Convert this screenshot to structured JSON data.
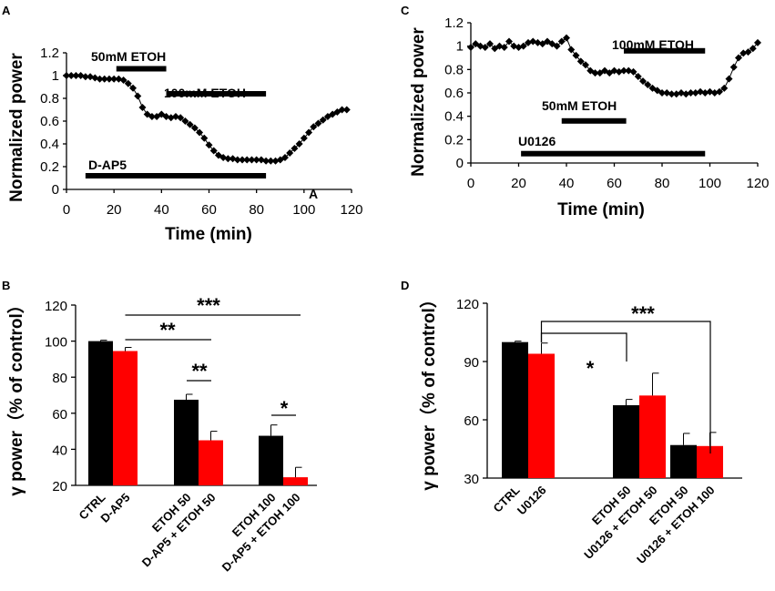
{
  "chart_data": [
    {
      "panel": "A",
      "type": "line",
      "xlabel": "Time (min)",
      "ylabel": "Normalized power",
      "xlim": [
        0,
        120
      ],
      "ylim": [
        0,
        1.2
      ],
      "xticks": [
        0,
        20,
        40,
        60,
        80,
        100,
        120
      ],
      "yticks": [
        0,
        0.2,
        0.4,
        0.6,
        0.8,
        1,
        1.2
      ],
      "stray_mark": "A",
      "x": [
        0,
        2,
        4,
        6,
        8,
        10,
        12,
        14,
        16,
        18,
        20,
        22,
        24,
        26,
        28,
        30,
        32,
        34,
        36,
        38,
        40,
        42,
        44,
        46,
        48,
        50,
        52,
        54,
        56,
        58,
        60,
        62,
        64,
        66,
        68,
        70,
        72,
        74,
        76,
        78,
        80,
        82,
        84,
        86,
        88,
        90,
        92,
        94,
        96,
        98,
        100,
        102,
        104,
        106,
        108,
        110,
        112,
        114,
        116,
        118
      ],
      "y": [
        1.0,
        1.0,
        1.0,
        1.0,
        0.99,
        0.99,
        0.98,
        0.97,
        0.97,
        0.97,
        0.97,
        0.97,
        0.96,
        0.93,
        0.89,
        0.82,
        0.72,
        0.66,
        0.64,
        0.64,
        0.66,
        0.64,
        0.63,
        0.64,
        0.63,
        0.6,
        0.57,
        0.54,
        0.5,
        0.45,
        0.39,
        0.34,
        0.3,
        0.28,
        0.27,
        0.27,
        0.26,
        0.26,
        0.26,
        0.26,
        0.26,
        0.26,
        0.25,
        0.25,
        0.25,
        0.26,
        0.28,
        0.32,
        0.36,
        0.4,
        0.45,
        0.5,
        0.55,
        0.58,
        0.61,
        0.64,
        0.66,
        0.68,
        0.7,
        0.7
      ],
      "bars": [
        {
          "label": "50mM ETOH",
          "start": 21,
          "end": 42,
          "level": 1.06
        },
        {
          "label": "100mM ETOH",
          "start": 42,
          "end": 84,
          "level": 0.84
        },
        {
          "label": "D-AP5",
          "start": 8,
          "end": 84,
          "level": 0.12
        }
      ]
    },
    {
      "panel": "C",
      "type": "line",
      "xlabel": "Time (min)",
      "ylabel": "Normalized power",
      "xlim": [
        0,
        120
      ],
      "ylim": [
        0,
        1.2
      ],
      "xticks": [
        0,
        20,
        40,
        60,
        80,
        100,
        120
      ],
      "yticks": [
        0,
        0.2,
        0.4,
        0.6,
        0.8,
        1,
        1.2
      ],
      "x": [
        0,
        2,
        4,
        6,
        8,
        10,
        12,
        14,
        16,
        18,
        20,
        22,
        24,
        26,
        28,
        30,
        32,
        34,
        36,
        38,
        40,
        42,
        44,
        46,
        48,
        50,
        52,
        54,
        56,
        58,
        60,
        62,
        64,
        66,
        68,
        70,
        72,
        74,
        76,
        78,
        80,
        82,
        84,
        86,
        88,
        90,
        92,
        94,
        96,
        98,
        100,
        102,
        104,
        106,
        108,
        110,
        112,
        114,
        116,
        118,
        120
      ],
      "y": [
        0.99,
        1.02,
        1.0,
        0.99,
        1.02,
        0.98,
        1.0,
        0.99,
        1.04,
        1.0,
        0.99,
        1.0,
        1.03,
        1.04,
        1.03,
        1.02,
        1.04,
        1.02,
        1.0,
        1.04,
        1.07,
        0.97,
        0.92,
        0.87,
        0.84,
        0.79,
        0.77,
        0.77,
        0.79,
        0.77,
        0.79,
        0.78,
        0.79,
        0.79,
        0.78,
        0.74,
        0.7,
        0.67,
        0.64,
        0.62,
        0.6,
        0.6,
        0.59,
        0.59,
        0.6,
        0.59,
        0.6,
        0.6,
        0.61,
        0.6,
        0.61,
        0.6,
        0.61,
        0.64,
        0.72,
        0.82,
        0.9,
        0.94,
        0.95,
        0.98,
        1.03
      ],
      "bars": [
        {
          "label": "100mM ETOH",
          "start": 64,
          "end": 98,
          "level": 0.96
        },
        {
          "label": "50mM ETOH",
          "start": 38,
          "end": 65,
          "level": 0.36
        },
        {
          "label": "U0126",
          "start": 21,
          "end": 98,
          "level": 0.08
        }
      ]
    },
    {
      "panel": "B",
      "type": "bar",
      "ylabel": "γ power（% of control）",
      "ylim": [
        20,
        120
      ],
      "yticks": [
        20,
        40,
        60,
        80,
        100,
        120
      ],
      "groups": [
        "CTRL",
        "D-AP5",
        "ETOH 50",
        "D-AP5 + ETOH 50",
        "ETOH 100",
        "D-AP5 + ETOH 100"
      ],
      "series": [
        {
          "name": "black",
          "color": "#000000",
          "values": [
            100,
            67.5,
            47.5
          ],
          "errors": [
            0.5,
            3,
            6
          ]
        },
        {
          "name": "red",
          "color": "#ff0000",
          "values": [
            94.5,
            45,
            24.5
          ],
          "errors": [
            2,
            5,
            5.5
          ]
        }
      ],
      "significance": [
        {
          "label": "***",
          "from": "D-AP5",
          "to": "D-AP5 + ETOH 100"
        },
        {
          "label": "**",
          "from": "D-AP5",
          "to": "D-AP5 + ETOH 50"
        },
        {
          "label": "**",
          "from": "ETOH 50",
          "to": "D-AP5 + ETOH 50"
        },
        {
          "label": "*",
          "from": "ETOH 100",
          "to": "D-AP5 + ETOH 100"
        }
      ]
    },
    {
      "panel": "D",
      "type": "bar",
      "ylabel": "γ power（% of control）",
      "ylim": [
        30,
        120
      ],
      "yticks": [
        30,
        60,
        90,
        120
      ],
      "groups": [
        "CTRL",
        "U0126",
        "ETOH 50",
        "U0126 + ETOH 50",
        "ETOH 50",
        "U0126 + ETOH 100"
      ],
      "series": [
        {
          "name": "black",
          "color": "#000000",
          "values": [
            100,
            67.5,
            47
          ],
          "errors": [
            0.5,
            3,
            6
          ]
        },
        {
          "name": "red",
          "color": "#ff0000",
          "values": [
            94,
            72.5,
            46.5
          ],
          "errors": [
            5.5,
            11.5,
            7
          ]
        }
      ],
      "significance": [
        {
          "label": "*",
          "from": "U0126",
          "to": "U0126 + ETOH 50"
        },
        {
          "label": "***",
          "from": "U0126",
          "to": "U0126 + ETOH 100"
        }
      ]
    }
  ]
}
